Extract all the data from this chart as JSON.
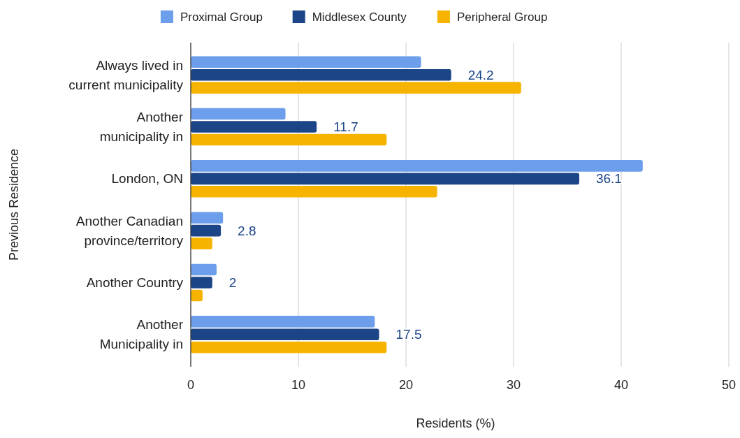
{
  "chart_data": {
    "type": "bar",
    "orientation": "horizontal",
    "xlabel": "Residents (%)",
    "ylabel": "Previous Residence",
    "categories": [
      "Always lived in\ncurrent municipality",
      "Another\nmunicipality in",
      "London, ON",
      "Another Canadian\nprovince/territory",
      "Another Country",
      "Another\nMunicipality in"
    ],
    "series": [
      {
        "name": "Proximal Group",
        "color": "#6d9eeb",
        "values": [
          21.4,
          8.8,
          42.0,
          3.0,
          2.4,
          17.1
        ]
      },
      {
        "name": "Middlesex County",
        "color": "#1c4587",
        "values": [
          24.2,
          11.7,
          36.1,
          2.8,
          2,
          17.5
        ],
        "value_labels": [
          "24.2",
          "11.7",
          "36.1",
          "2.8",
          "2",
          "17.5"
        ]
      },
      {
        "name": "Peripheral Group",
        "color": "#f6b400",
        "values": [
          30.7,
          18.2,
          22.9,
          2.0,
          1.1,
          18.2
        ]
      }
    ],
    "xlim": [
      0,
      50
    ],
    "xticks": [
      0,
      10,
      20,
      30,
      40,
      50
    ],
    "grid": "x",
    "legend": "top"
  }
}
